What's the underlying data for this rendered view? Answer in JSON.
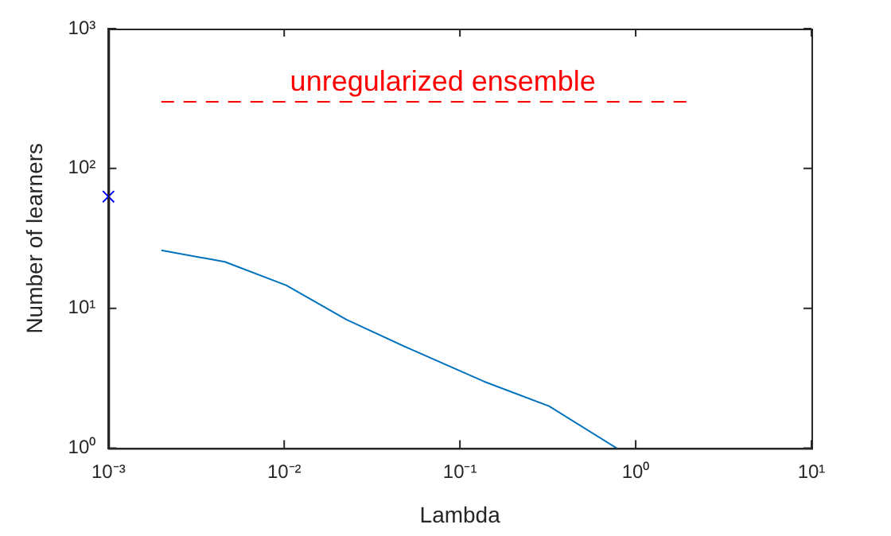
{
  "chart_data": {
    "type": "line",
    "xlabel": "Lambda",
    "ylabel": "Number of learners",
    "log": "xy",
    "xlim": [
      0.001,
      10
    ],
    "ylim": [
      1,
      1000
    ],
    "xticks": [
      {
        "value": 0.001,
        "label": "10⁻³"
      },
      {
        "value": 0.01,
        "label": "10⁻²"
      },
      {
        "value": 0.1,
        "label": "10⁻¹"
      },
      {
        "value": 1,
        "label": "10⁰"
      },
      {
        "value": 10,
        "label": "10¹"
      }
    ],
    "yticks": [
      {
        "value": 1,
        "label": "10⁰"
      },
      {
        "value": 10,
        "label": "10¹"
      },
      {
        "value": 100,
        "label": "10²"
      },
      {
        "value": 1000,
        "label": "10³"
      }
    ],
    "grid": false,
    "legend": false,
    "series": [
      {
        "type": "line",
        "color": "#0072bd",
        "line_style": "solid",
        "marker": "none",
        "x": [
          0.002,
          0.0046,
          0.0103,
          0.0226,
          0.0507,
          0.137,
          0.321,
          0.78
        ],
        "values": [
          26,
          21.5,
          14.6,
          8.3,
          5.2,
          3,
          2,
          1
        ]
      },
      {
        "type": "line",
        "color": "#ff0000",
        "line_style": "dashed",
        "marker": "none",
        "x": [
          0.002,
          2
        ],
        "values": [
          300,
          300
        ]
      },
      {
        "type": "scatter",
        "color": "#0000ff",
        "marker": "cross",
        "x": [
          0.001
        ],
        "values": [
          63
        ]
      }
    ],
    "annotations": [
      {
        "text": "unregularized ensemble",
        "x": 0.08,
        "y": 300
      }
    ]
  }
}
